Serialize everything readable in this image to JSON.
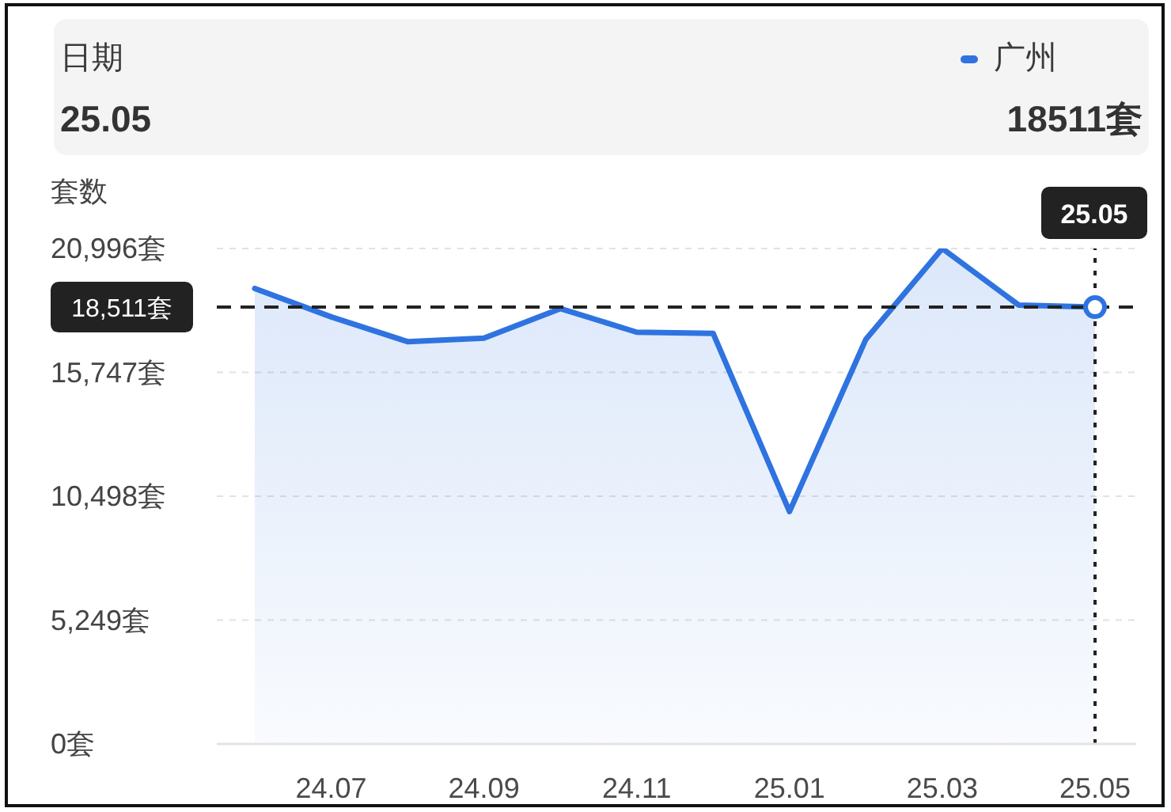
{
  "chart_data": {
    "type": "area",
    "ylabel": "套数",
    "annotations": [
      "日期",
      "25.05",
      "18511套"
    ],
    "categories": [
      null,
      "24.07",
      null,
      "24.09",
      null,
      "24.11",
      null,
      "25.01",
      null,
      "25.03",
      null,
      "25.05"
    ],
    "series": [
      {
        "name": "广州",
        "type": "area",
        "color": "#2e73e0",
        "marker": "none",
        "values": [
          19300,
          18100,
          17050,
          17200,
          18450,
          17450,
          17400,
          9850,
          17150,
          20996,
          18600,
          18511
        ]
      },
      {
        "type": "scatter",
        "color": "#2e73e0",
        "marker": "circle",
        "x": [
          "25.05"
        ],
        "values": [
          18511
        ]
      }
    ],
    "ylim": [
      0,
      20996
    ],
    "yticks": [
      {
        "value": 0,
        "label": "0套"
      },
      {
        "value": 5249,
        "label": "5,249套"
      },
      {
        "value": 10498,
        "label": "10,498套"
      },
      {
        "value": 15747,
        "label": "15,747套"
      },
      {
        "value": 20996,
        "label": "20,996套"
      }
    ],
    "ref_lines": [
      {
        "axis": "y",
        "value": 18511,
        "label": "18,511套",
        "color": "#222222",
        "line_style": "dashed"
      },
      {
        "axis": "x",
        "value": "25.05",
        "label": "25.05",
        "color": "#222222",
        "line_style": "dotted"
      }
    ],
    "grid": "y",
    "legend": "top right"
  }
}
